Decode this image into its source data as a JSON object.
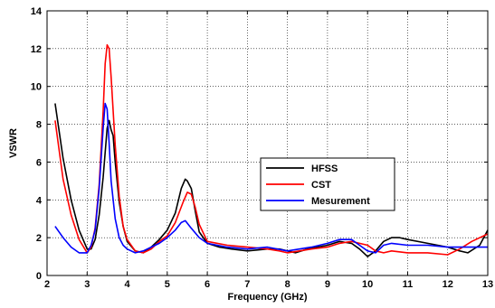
{
  "chart_data": {
    "type": "line",
    "xlabel": "Frequency (GHz)",
    "ylabel": "VSWR",
    "xlim": [
      2,
      13
    ],
    "ylim": [
      0,
      14
    ],
    "xticks": [
      2,
      3,
      4,
      5,
      6,
      7,
      8,
      9,
      10,
      11,
      12,
      13
    ],
    "yticks": [
      0,
      2,
      4,
      6,
      8,
      10,
      12,
      14
    ],
    "grid": true,
    "legend_position": "center-right",
    "series": [
      {
        "name": "HFSS",
        "color": "#000000",
        "x": [
          2.2,
          2.4,
          2.6,
          2.8,
          3.0,
          3.1,
          3.2,
          3.3,
          3.4,
          3.5,
          3.55,
          3.6,
          3.65,
          3.7,
          3.8,
          3.9,
          4.0,
          4.2,
          4.4,
          4.6,
          4.8,
          5.0,
          5.2,
          5.35,
          5.45,
          5.5,
          5.6,
          5.7,
          5.8,
          6.0,
          6.3,
          6.6,
          7.0,
          7.5,
          7.8,
          8.0,
          8.2,
          8.5,
          9.0,
          9.3,
          9.6,
          9.8,
          10.0,
          10.2,
          10.4,
          10.6,
          10.8,
          11.0,
          11.5,
          12.0,
          12.3,
          12.5,
          12.8,
          13.0
        ],
        "y": [
          9.1,
          6.2,
          4.0,
          2.4,
          1.4,
          1.4,
          1.9,
          3.2,
          5.2,
          7.8,
          8.2,
          7.7,
          7.4,
          6.0,
          3.9,
          2.6,
          1.8,
          1.3,
          1.2,
          1.5,
          1.9,
          2.4,
          3.3,
          4.6,
          5.1,
          5.0,
          4.6,
          3.4,
          2.3,
          1.7,
          1.5,
          1.4,
          1.3,
          1.4,
          1.4,
          1.3,
          1.2,
          1.4,
          1.6,
          1.8,
          1.7,
          1.4,
          1.0,
          1.3,
          1.8,
          2.0,
          2.0,
          1.9,
          1.7,
          1.5,
          1.3,
          1.2,
          1.6,
          2.4
        ]
      },
      {
        "name": "CST",
        "color": "#ff0000",
        "x": [
          2.2,
          2.4,
          2.6,
          2.8,
          3.0,
          3.1,
          3.2,
          3.3,
          3.4,
          3.45,
          3.5,
          3.55,
          3.6,
          3.7,
          3.8,
          3.9,
          4.0,
          4.2,
          4.4,
          4.6,
          4.8,
          5.0,
          5.2,
          5.4,
          5.5,
          5.6,
          5.7,
          5.8,
          6.0,
          6.5,
          7.0,
          7.5,
          7.8,
          8.0,
          8.3,
          8.6,
          9.0,
          9.3,
          9.6,
          9.8,
          10.0,
          10.2,
          10.4,
          10.6,
          11.0,
          11.5,
          12.0,
          12.3,
          12.6,
          13.0
        ],
        "y": [
          8.2,
          5.1,
          3.2,
          1.9,
          1.2,
          1.5,
          2.5,
          4.8,
          8.7,
          11.2,
          12.2,
          12.0,
          10.5,
          6.9,
          4.2,
          2.6,
          1.9,
          1.3,
          1.2,
          1.4,
          1.8,
          2.1,
          2.8,
          3.9,
          4.4,
          4.3,
          3.6,
          2.7,
          1.8,
          1.6,
          1.5,
          1.4,
          1.3,
          1.2,
          1.3,
          1.4,
          1.5,
          1.7,
          1.8,
          1.7,
          1.6,
          1.3,
          1.2,
          1.3,
          1.2,
          1.2,
          1.1,
          1.4,
          1.8,
          2.2
        ]
      },
      {
        "name": "Mesurement",
        "color": "#0000ff",
        "x": [
          2.2,
          2.4,
          2.6,
          2.8,
          3.0,
          3.1,
          3.2,
          3.3,
          3.4,
          3.45,
          3.5,
          3.55,
          3.6,
          3.7,
          3.8,
          3.9,
          4.0,
          4.2,
          4.4,
          4.6,
          4.8,
          5.0,
          5.2,
          5.35,
          5.45,
          5.6,
          5.8,
          6.0,
          6.5,
          7.0,
          7.5,
          8.0,
          8.3,
          8.6,
          9.0,
          9.3,
          9.6,
          9.8,
          10.0,
          10.2,
          10.4,
          10.6,
          11.0,
          11.5,
          12.0,
          12.5,
          13.0
        ],
        "y": [
          2.6,
          2.0,
          1.5,
          1.2,
          1.2,
          1.6,
          2.4,
          4.6,
          7.8,
          9.1,
          8.8,
          7.0,
          5.0,
          3.0,
          2.0,
          1.6,
          1.4,
          1.2,
          1.3,
          1.5,
          1.7,
          2.0,
          2.4,
          2.8,
          2.9,
          2.5,
          2.0,
          1.7,
          1.5,
          1.4,
          1.5,
          1.3,
          1.4,
          1.5,
          1.7,
          1.9,
          1.9,
          1.6,
          1.3,
          1.2,
          1.6,
          1.7,
          1.6,
          1.6,
          1.5,
          1.5,
          1.5
        ]
      }
    ]
  }
}
